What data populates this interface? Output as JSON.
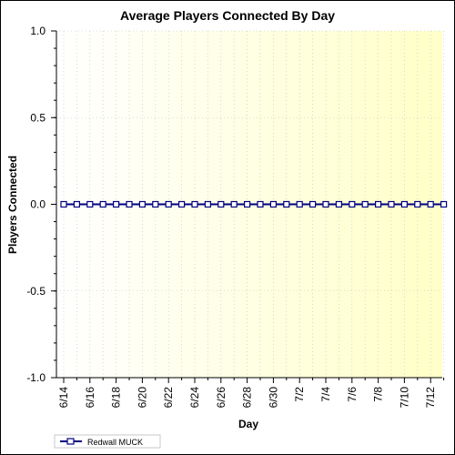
{
  "chart_data": {
    "type": "line",
    "title": "Average Players Connected By Day",
    "xlabel": "Day",
    "ylabel": "Players Connected",
    "ylim": [
      -1.0,
      1.0
    ],
    "y_ticks": [
      "1.0",
      "0.5",
      "0.0",
      "-0.5",
      "-1.0"
    ],
    "x_tick_labels": [
      "6/14",
      "6/16",
      "6/18",
      "6/20",
      "6/22",
      "6/24",
      "6/26",
      "6/28",
      "6/30",
      "7/2",
      "7/4",
      "7/6",
      "7/8",
      "7/10",
      "7/12"
    ],
    "categories": [
      "6/14",
      "6/15",
      "6/16",
      "6/17",
      "6/18",
      "6/19",
      "6/20",
      "6/21",
      "6/22",
      "6/23",
      "6/24",
      "6/25",
      "6/26",
      "6/27",
      "6/28",
      "6/29",
      "6/30",
      "7/1",
      "7/2",
      "7/3",
      "7/4",
      "7/5",
      "7/6",
      "7/7",
      "7/8",
      "7/9",
      "7/10",
      "7/11",
      "7/12",
      "7/13"
    ],
    "series": [
      {
        "name": "Redwall MUCK",
        "color": "#000080",
        "values": [
          0,
          0,
          0,
          0,
          0,
          0,
          0,
          0,
          0,
          0,
          0,
          0,
          0,
          0,
          0,
          0,
          0,
          0,
          0,
          0,
          0,
          0,
          0,
          0,
          0,
          0,
          0,
          0,
          0,
          0
        ]
      }
    ],
    "grid": true,
    "legend_placement": "bottom-left",
    "background_gradient": [
      "#ffffff",
      "#ffffc8"
    ]
  }
}
